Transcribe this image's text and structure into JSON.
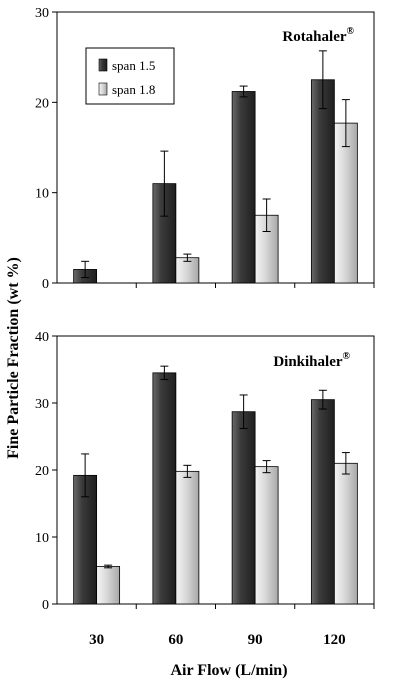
{
  "chart_data": [
    {
      "type": "bar",
      "annotation": "Rotahaler",
      "annotation_sup": "®",
      "categories": [
        "30",
        "60",
        "90",
        "120"
      ],
      "series": [
        {
          "name": "span 1.5",
          "values": [
            1.5,
            11.0,
            21.2,
            22.5
          ],
          "errors": [
            0.9,
            3.6,
            0.6,
            3.2
          ]
        },
        {
          "name": "span 1.8",
          "values": [
            null,
            2.8,
            7.5,
            17.7
          ],
          "errors": [
            null,
            0.4,
            1.8,
            2.6
          ]
        }
      ],
      "ylim": [
        0,
        30
      ],
      "yticks": [
        "0",
        "10",
        "20",
        "30"
      ],
      "legend": "top-left",
      "grid": false
    },
    {
      "type": "bar",
      "annotation": "Dinkihaler",
      "annotation_sup": "®",
      "categories": [
        "30",
        "60",
        "90",
        "120"
      ],
      "series": [
        {
          "name": "span 1.5",
          "values": [
            19.2,
            34.5,
            28.7,
            30.5
          ],
          "errors": [
            3.2,
            1.0,
            2.5,
            1.4
          ]
        },
        {
          "name": "span 1.8",
          "values": [
            5.6,
            19.8,
            20.5,
            21.0
          ],
          "errors": [
            0.2,
            0.9,
            0.9,
            1.6
          ]
        }
      ],
      "ylim": [
        0,
        40
      ],
      "yticks": [
        "0",
        "10",
        "20",
        "30",
        "40"
      ],
      "grid": false
    }
  ],
  "labels": {
    "ylabel": "Fine Particle Fraction  (wt %)",
    "xlabel": "Air Flow (L/min)"
  },
  "colors": {
    "dark_bar": "#3a3a3a",
    "light_bar": "#cfcfcf"
  }
}
